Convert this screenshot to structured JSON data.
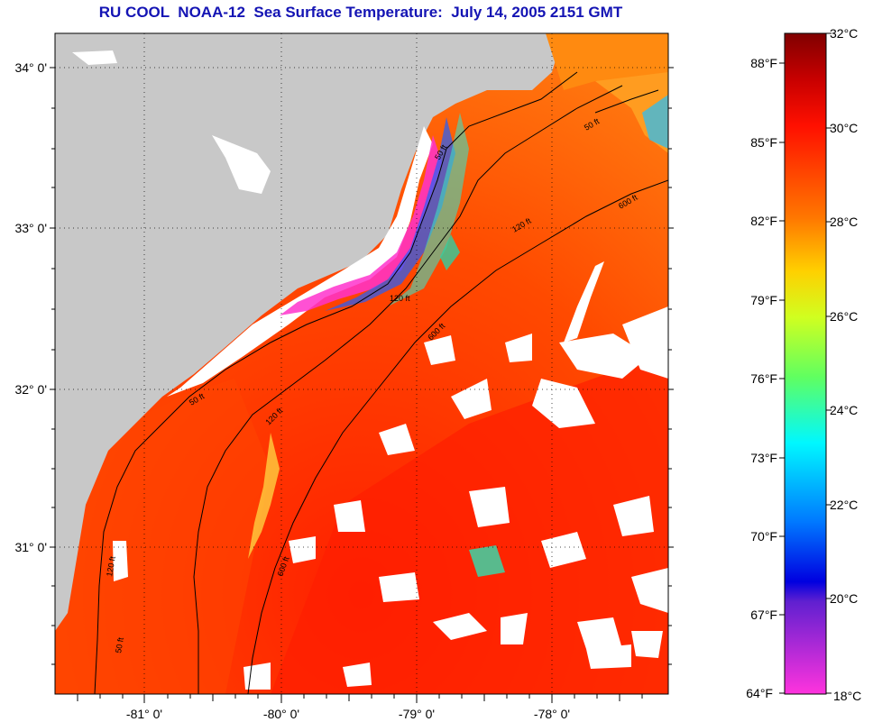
{
  "title": "RU COOL  NOAA-12  Sea Surface Temperature:  July 14, 2005 2151 GMT",
  "map": {
    "lon_labels": [
      "-81° 0'",
      "-80° 0'",
      "-79° 0'",
      "-78° 0'"
    ],
    "lat_labels": [
      "34° 0'",
      "33° 0'",
      "32° 0'",
      "31° 0'"
    ],
    "contour_labels": [
      "50 ft",
      "120 ft",
      "600 ft",
      "50 ft",
      "120 ft",
      "600 ft",
      "50 ft",
      "120 ft",
      "600 ft",
      "50 ft",
      "120 ft"
    ],
    "colors": {
      "land": "#c8c8c8",
      "cloud": "#ffffff",
      "warm_sea": "#ff3a00",
      "cold_sea": "#ff33cc"
    }
  },
  "colorbar": {
    "fahrenheit": [
      "88°F",
      "85°F",
      "82°F",
      "79°F",
      "76°F",
      "73°F",
      "70°F",
      "67°F",
      "64°F"
    ],
    "celsius": [
      "32°C",
      "30°C",
      "28°C",
      "26°C",
      "24°C",
      "22°C",
      "20°C",
      "18°C"
    ]
  }
}
